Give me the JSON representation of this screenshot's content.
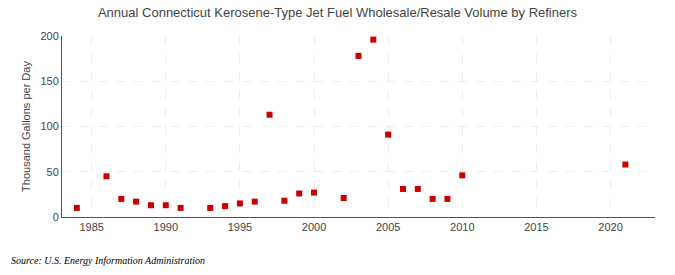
{
  "chart_data": {
    "type": "scatter",
    "title": "Annual Connecticut Kerosene-Type Jet Fuel Wholesale/Resale Volume by Refiners",
    "ylabel": "Thousand Gallons per Day",
    "annotations": [
      "Source: U.S. Energy Information Administration"
    ],
    "x": [
      1984,
      1986,
      1987,
      1988,
      1989,
      1990,
      1991,
      1993,
      1994,
      1995,
      1996,
      1997,
      1998,
      1999,
      2000,
      2002,
      2003,
      2004,
      2005,
      2006,
      2007,
      2008,
      2009,
      2010,
      2021
    ],
    "values": [
      10,
      45,
      20,
      17,
      13,
      13,
      10,
      10,
      12,
      15,
      17,
      113,
      18,
      26,
      27,
      21,
      178,
      196,
      91,
      31,
      31,
      20,
      20,
      46,
      58
    ],
    "color": "#cc0000",
    "marker": "square",
    "xlim": [
      1983,
      2023
    ],
    "ylim": [
      0,
      200
    ],
    "xticks": [
      1985,
      1990,
      1995,
      2000,
      2005,
      2010,
      2015,
      2020
    ],
    "yticks": [
      0,
      50,
      100,
      150,
      200
    ],
    "grid": true
  }
}
